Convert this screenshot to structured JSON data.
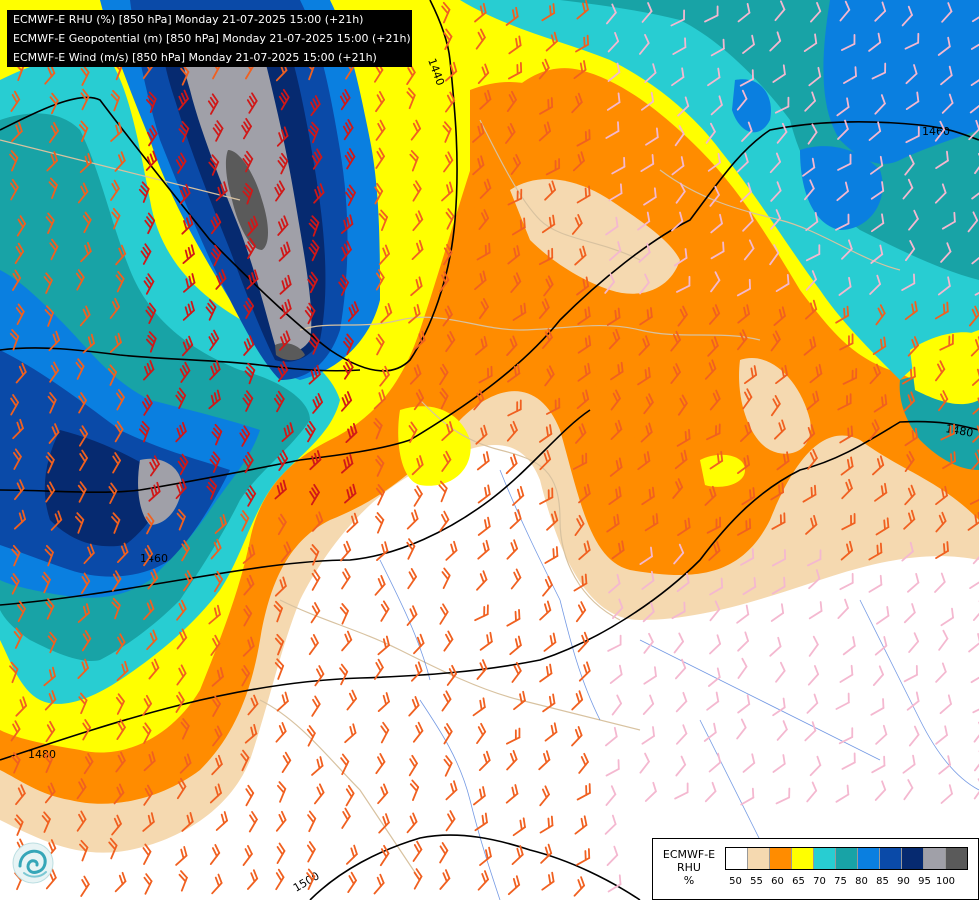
{
  "header": {
    "line1": "ECMWF-E RHU (%) [850 hPa] Monday 21-07-2025 15:00 (+21h)",
    "line2": "ECMWF-E Geopotential (m) [850 hPa] Monday 21-07-2025 15:00 (+21h)",
    "line3": "ECMWF-E Wind (m/s) [850 hPa] Monday 21-07-2025 15:00 (+21h)"
  },
  "contour_labels": [
    "1440",
    "1460",
    "1460",
    "1480",
    "1480",
    "1500"
  ],
  "legend": {
    "title_line1": "ECMWF-E",
    "title_line2": "RHU",
    "unit": "%",
    "levels": [
      "50",
      "55",
      "60",
      "65",
      "70",
      "75",
      "80",
      "85",
      "90",
      "95",
      "100"
    ],
    "colors": [
      "#ffffff",
      "#f5d9b0",
      "#ff8c00",
      "#ffff00",
      "#28cdd2",
      "#18a3a6",
      "#0a7fe0",
      "#0a4aa8",
      "#062a70",
      "#a0a0a8",
      "#5a5a5a"
    ]
  },
  "colors": {
    "white_dry": "#ffffff",
    "tan": "#f5d9b0",
    "orange": "#ff8c00",
    "yellow": "#ffff00",
    "cyan": "#28cdd2",
    "teal": "#18a3a6",
    "blue": "#0a7fe0",
    "dark_blue": "#0a4aa8",
    "navy": "#062a70",
    "grey": "#a0a0a8",
    "dark_grey": "#5a5a5a",
    "wind_weak": "#f4b8d0",
    "wind_moderate": "#f06020",
    "wind_strong": "#d01818"
  },
  "logo_icon": "ecmwf-swirl-icon"
}
